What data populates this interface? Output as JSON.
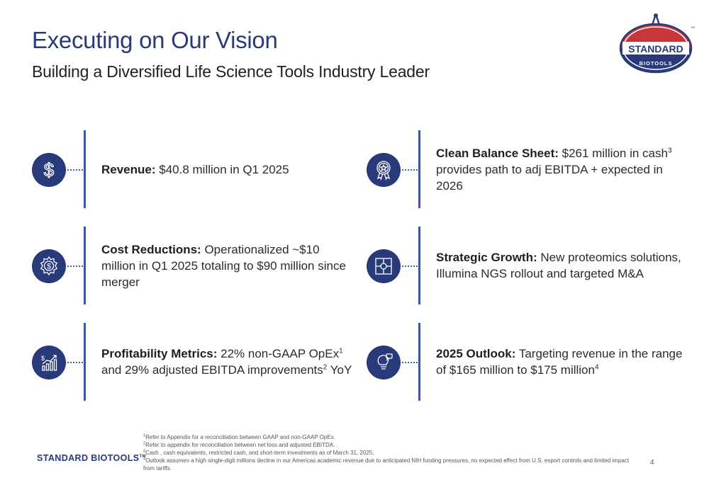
{
  "title": "Executing on Our Vision",
  "subtitle": "Building a Diversified Life Science Tools Industry Leader",
  "logo": {
    "top_text": "STANDARD",
    "bottom_text": "BIOTOOLS",
    "tm": "TM",
    "colors": {
      "red": "#c8353a",
      "navy": "#283a7a"
    }
  },
  "items": [
    {
      "icon": "dollar-icon",
      "bold": "Revenue:",
      "text": " $40.8 million in Q1 2025"
    },
    {
      "icon": "gear-dollar-icon",
      "bold": "Cost Reductions:",
      "text": " Operationalized ~$10 million in Q1 2025 totaling to $90 million since merger"
    },
    {
      "icon": "growth-chart-icon",
      "bold": "Profitability Metrics:",
      "text_a": " 22% non-GAAP OpEx",
      "sup_a": "1",
      "text_b": " and 29% adjusted EBITDA improvements",
      "sup_b": "2",
      "text_c": " YoY"
    },
    {
      "icon": "award-badge-icon",
      "bold": "Clean Balance Sheet:",
      "text_a": " $261 million in cash",
      "sup_a": "3",
      "text_b": " provides path to adj EBITDA + expected in 2026"
    },
    {
      "icon": "puzzle-icon",
      "bold": "Strategic Growth:",
      "text": " New proteomics solutions, Illumina NGS rollout and targeted M&A"
    },
    {
      "icon": "lightbulb-icon",
      "bold": "2025 Outlook:",
      "text_a": " Targeting revenue in the range of $165 million to $175 million",
      "sup_a": "4"
    }
  ],
  "footer": {
    "brand": "STANDARD BIOTOOLS",
    "brand_tm": "TM",
    "page_number": "4",
    "footnotes": [
      {
        "num": "1",
        "text": "Refer to Appendix for a reconciliation between GAAP and non-GAAP OpEx."
      },
      {
        "num": "2",
        "text": "Refer to appendix for reconciliation between net loss and adjusted EBITDA. ."
      },
      {
        "num": "3",
        "text": "Cash , cash equivalents, restricted cash, and short-term investments as of March 31, 2025."
      },
      {
        "num": "4",
        "text": "Outlook assumes a high single-digit millions decline in our Americas academic revenue due to anticipated NIH funding pressures, no expected effect from U.S. export controls and limited impact from tariffs."
      }
    ]
  },
  "colors": {
    "accent": "#283a7a",
    "line": "#3d56a6"
  }
}
